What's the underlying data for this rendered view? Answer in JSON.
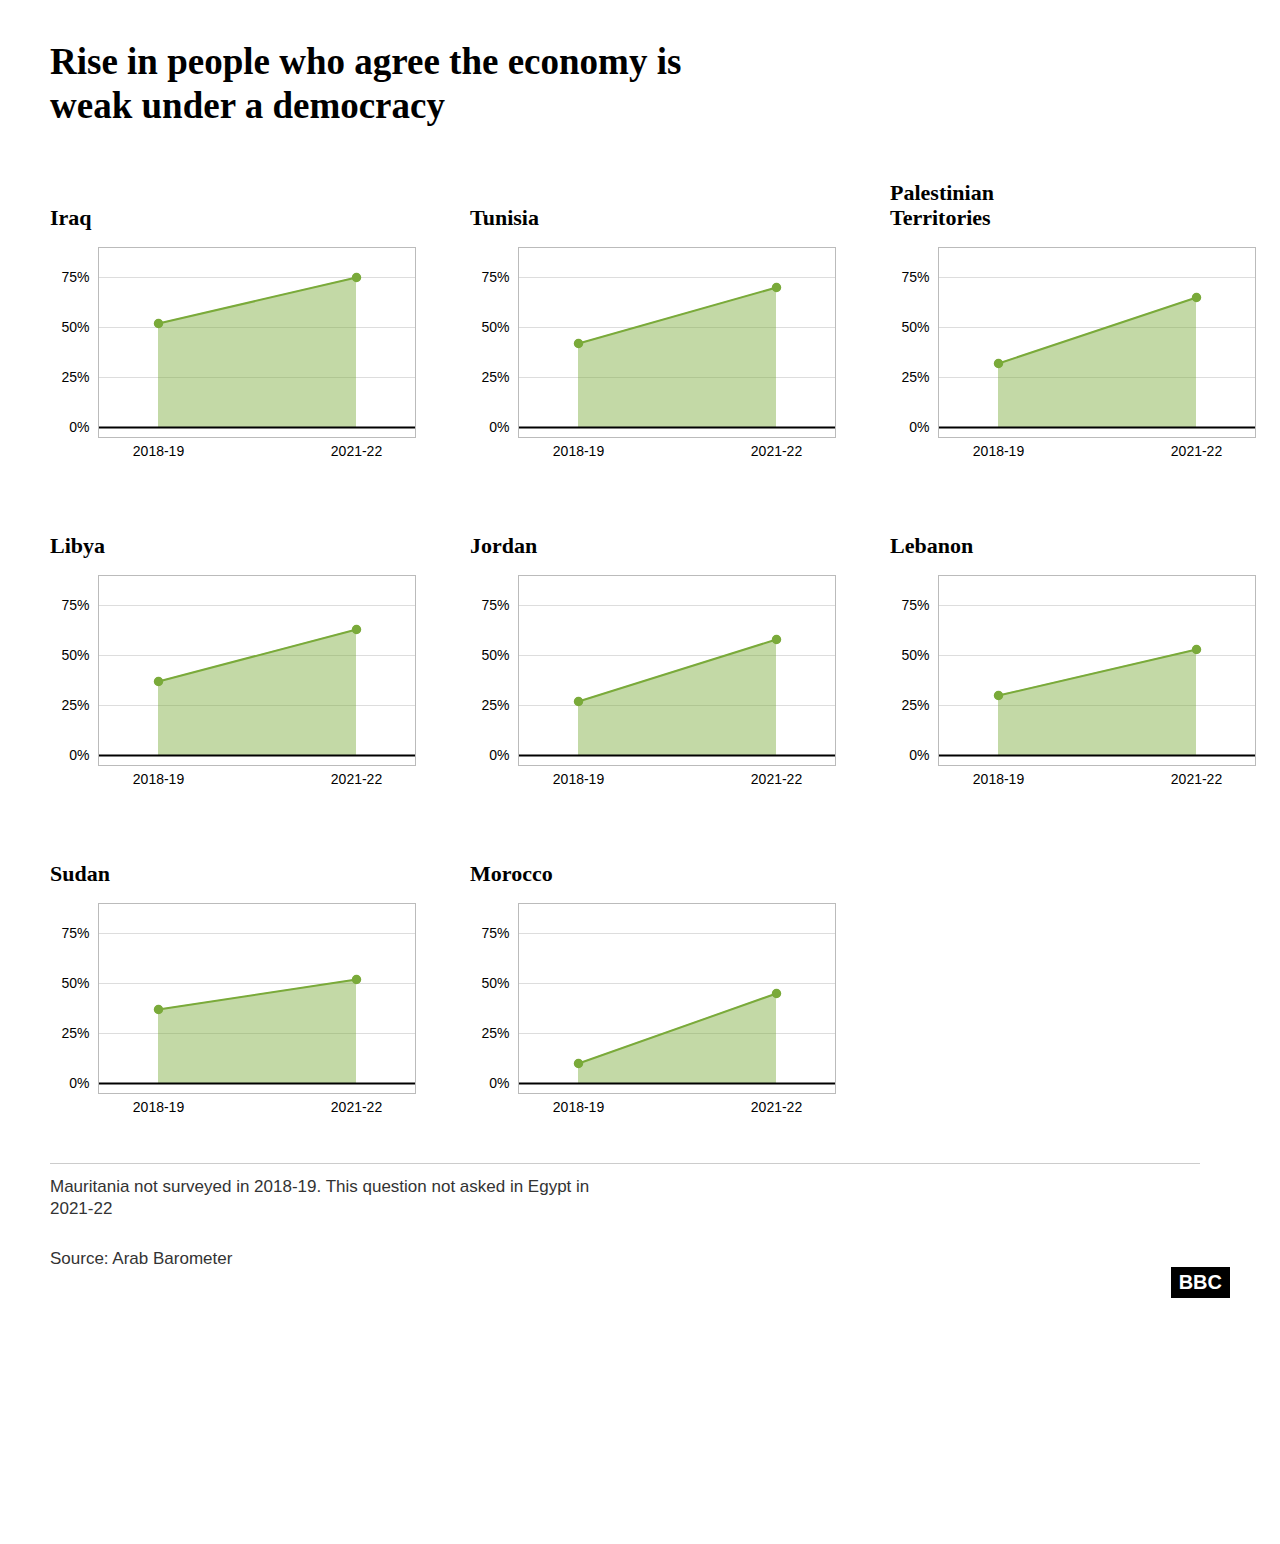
{
  "chart_data": {
    "type": "area",
    "title": "Rise in people who agree the economy is\nweak under a democracy",
    "categories": [
      "2018-19",
      "2021-22"
    ],
    "series": [
      {
        "name": "Iraq",
        "values": [
          52,
          75
        ]
      },
      {
        "name": "Tunisia",
        "values": [
          42,
          70
        ]
      },
      {
        "name": "Palestinian\nTerritories",
        "values": [
          32,
          65
        ]
      },
      {
        "name": "Libya",
        "values": [
          37,
          63
        ]
      },
      {
        "name": "Jordan",
        "values": [
          27,
          58
        ]
      },
      {
        "name": "Lebanon",
        "values": [
          30,
          53
        ]
      },
      {
        "name": "Sudan",
        "values": [
          37,
          52
        ]
      },
      {
        "name": "Morocco",
        "values": [
          10,
          45
        ]
      }
    ],
    "color": "#7aaa3a",
    "marker": "circle",
    "ylim": [
      -5,
      90
    ],
    "yticks": [
      {
        "value": 0,
        "label": "0%"
      },
      {
        "value": 25,
        "label": "25%"
      },
      {
        "value": 50,
        "label": "50%"
      },
      {
        "value": 75,
        "label": "75%"
      }
    ],
    "grid": true,
    "annotations": [
      "Mauritania not surveyed in 2018-19. This question not asked in Egypt in\n2021-22",
      "Source: Arab Barometer",
      "BBC"
    ]
  }
}
